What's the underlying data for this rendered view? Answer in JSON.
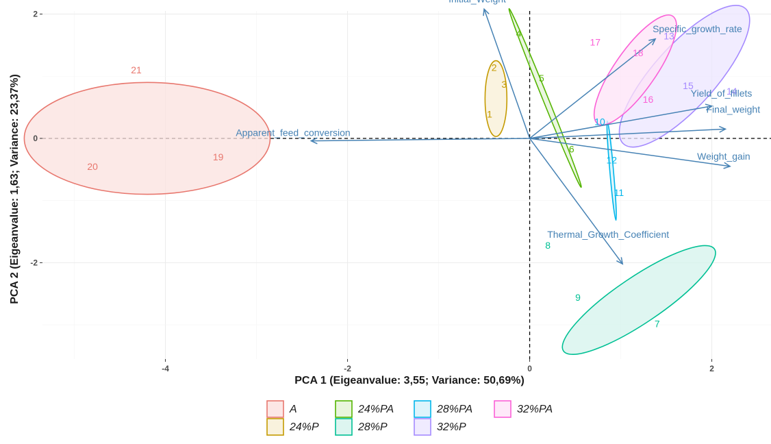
{
  "chart_data": {
    "type": "scatter",
    "subtype": "pca-biplot",
    "xlabel": "PCA 1 (Eigeanvalue: 3,55; Variance: 50,69%)",
    "ylabel": "PCA 2 (Eigeanvalue: 1,63; Variance: 23,37%)",
    "xlim": [
      -5.35,
      2.65
    ],
    "ylim": [
      -3.55,
      2.05
    ],
    "x_ticks": [
      -4,
      -2,
      0,
      2
    ],
    "y_ticks": [
      -2,
      0,
      2
    ],
    "x_tick_labels": [
      "-4",
      "-2",
      "0",
      "2"
    ],
    "y_tick_labels": [
      "-2",
      "0",
      "2"
    ],
    "grid": true,
    "reference_lines": "dashed lines at x=0 and y=0",
    "legend_position": "bottom",
    "variable_color": "#4682b4",
    "variables": [
      {
        "name": "Initial_Weight",
        "x": -0.5,
        "y": 2.08
      },
      {
        "name": "Specific_growth_rate",
        "x": 1.38,
        "y": 1.6
      },
      {
        "name": "Yield_of_fillets",
        "x": 2.0,
        "y": 0.52
      },
      {
        "name": "Final_weight",
        "x": 2.15,
        "y": 0.15
      },
      {
        "name": "Weight_gain",
        "x": 2.2,
        "y": -0.45
      },
      {
        "name": "Thermal_Growth_Coefficient",
        "x": 1.02,
        "y": -2.02
      },
      {
        "name": "Apparent_feed_conversion",
        "x": -2.4,
        "y": -0.04
      }
    ],
    "groups": [
      {
        "name": "A",
        "color": "#e8776e",
        "fill": "#fbe1df",
        "ellipse": {
          "cx": -4.2,
          "cy": 0.0,
          "rx": 1.35,
          "ry": 0.9,
          "angle": 0
        }
      },
      {
        "name": "24%P",
        "color": "#c49a00",
        "fill": "#f8efd5",
        "ellipse": {
          "cx": -0.37,
          "cy": 0.64,
          "rx": 0.12,
          "ry": 0.61,
          "angle": 0
        }
      },
      {
        "name": "24%PA",
        "color": "#53b400",
        "fill": "#e3f3d5",
        "ellipse": {
          "cx": 0.17,
          "cy": 0.65,
          "rx": 0.03,
          "ry": 1.55,
          "angle": 22
        }
      },
      {
        "name": "28%P",
        "color": "#00c094",
        "fill": "#d4f3ec",
        "ellipse": {
          "cx": 1.2,
          "cy": -2.6,
          "rx": 1.0,
          "ry": 0.37,
          "angle": 34
        }
      },
      {
        "name": "28%PA",
        "color": "#00b6eb",
        "fill": "#d4f1fa",
        "ellipse": {
          "cx": 0.9,
          "cy": -0.52,
          "rx": 0.02,
          "ry": 0.8,
          "angle": 5
        }
      },
      {
        "name": "32%P",
        "color": "#a58aff",
        "fill": "#ece6ff",
        "ellipse": {
          "cx": 1.7,
          "cy": 1.0,
          "rx": 1.0,
          "ry": 0.5,
          "angle": 48
        }
      },
      {
        "name": "32%PA",
        "color": "#fb61d7",
        "fill": "#fee3f7",
        "ellipse": {
          "cx": 1.16,
          "cy": 1.1,
          "rx": 0.72,
          "ry": 0.33,
          "angle": 55
        }
      }
    ],
    "observations": [
      {
        "label": "1",
        "group": "24%P",
        "x": -0.44,
        "y": 0.39
      },
      {
        "label": "2",
        "group": "24%P",
        "x": -0.39,
        "y": 1.14
      },
      {
        "label": "3",
        "group": "24%P",
        "x": -0.28,
        "y": 0.87
      },
      {
        "label": "4",
        "group": "24%PA",
        "x": -0.12,
        "y": 1.69
      },
      {
        "label": "5",
        "group": "24%PA",
        "x": 0.13,
        "y": 0.97
      },
      {
        "label": "6",
        "group": "24%PA",
        "x": 0.46,
        "y": -0.17
      },
      {
        "label": "7",
        "group": "28%P",
        "x": 1.4,
        "y": -2.98
      },
      {
        "label": "8",
        "group": "28%P",
        "x": 0.2,
        "y": -1.72
      },
      {
        "label": "9",
        "group": "28%P",
        "x": 0.53,
        "y": -2.56
      },
      {
        "label": "10",
        "group": "28%PA",
        "x": 0.77,
        "y": 0.27
      },
      {
        "label": "11",
        "group": "28%PA",
        "x": 0.98,
        "y": -0.87
      },
      {
        "label": "12",
        "group": "28%PA",
        "x": 0.9,
        "y": -0.35
      },
      {
        "label": "13",
        "group": "32%P",
        "x": 1.53,
        "y": 1.65
      },
      {
        "label": "14",
        "group": "32%P",
        "x": 2.22,
        "y": 0.76
      },
      {
        "label": "15",
        "group": "32%P",
        "x": 1.74,
        "y": 0.85
      },
      {
        "label": "16",
        "group": "32%PA",
        "x": 1.3,
        "y": 0.63
      },
      {
        "label": "17",
        "group": "32%PA",
        "x": 0.72,
        "y": 1.55
      },
      {
        "label": "18",
        "group": "32%PA",
        "x": 1.19,
        "y": 1.38
      },
      {
        "label": "19",
        "group": "A",
        "x": -3.42,
        "y": -0.3
      },
      {
        "label": "20",
        "group": "A",
        "x": -4.8,
        "y": -0.45
      },
      {
        "label": "21",
        "group": "A",
        "x": -4.32,
        "y": 1.1
      }
    ]
  }
}
